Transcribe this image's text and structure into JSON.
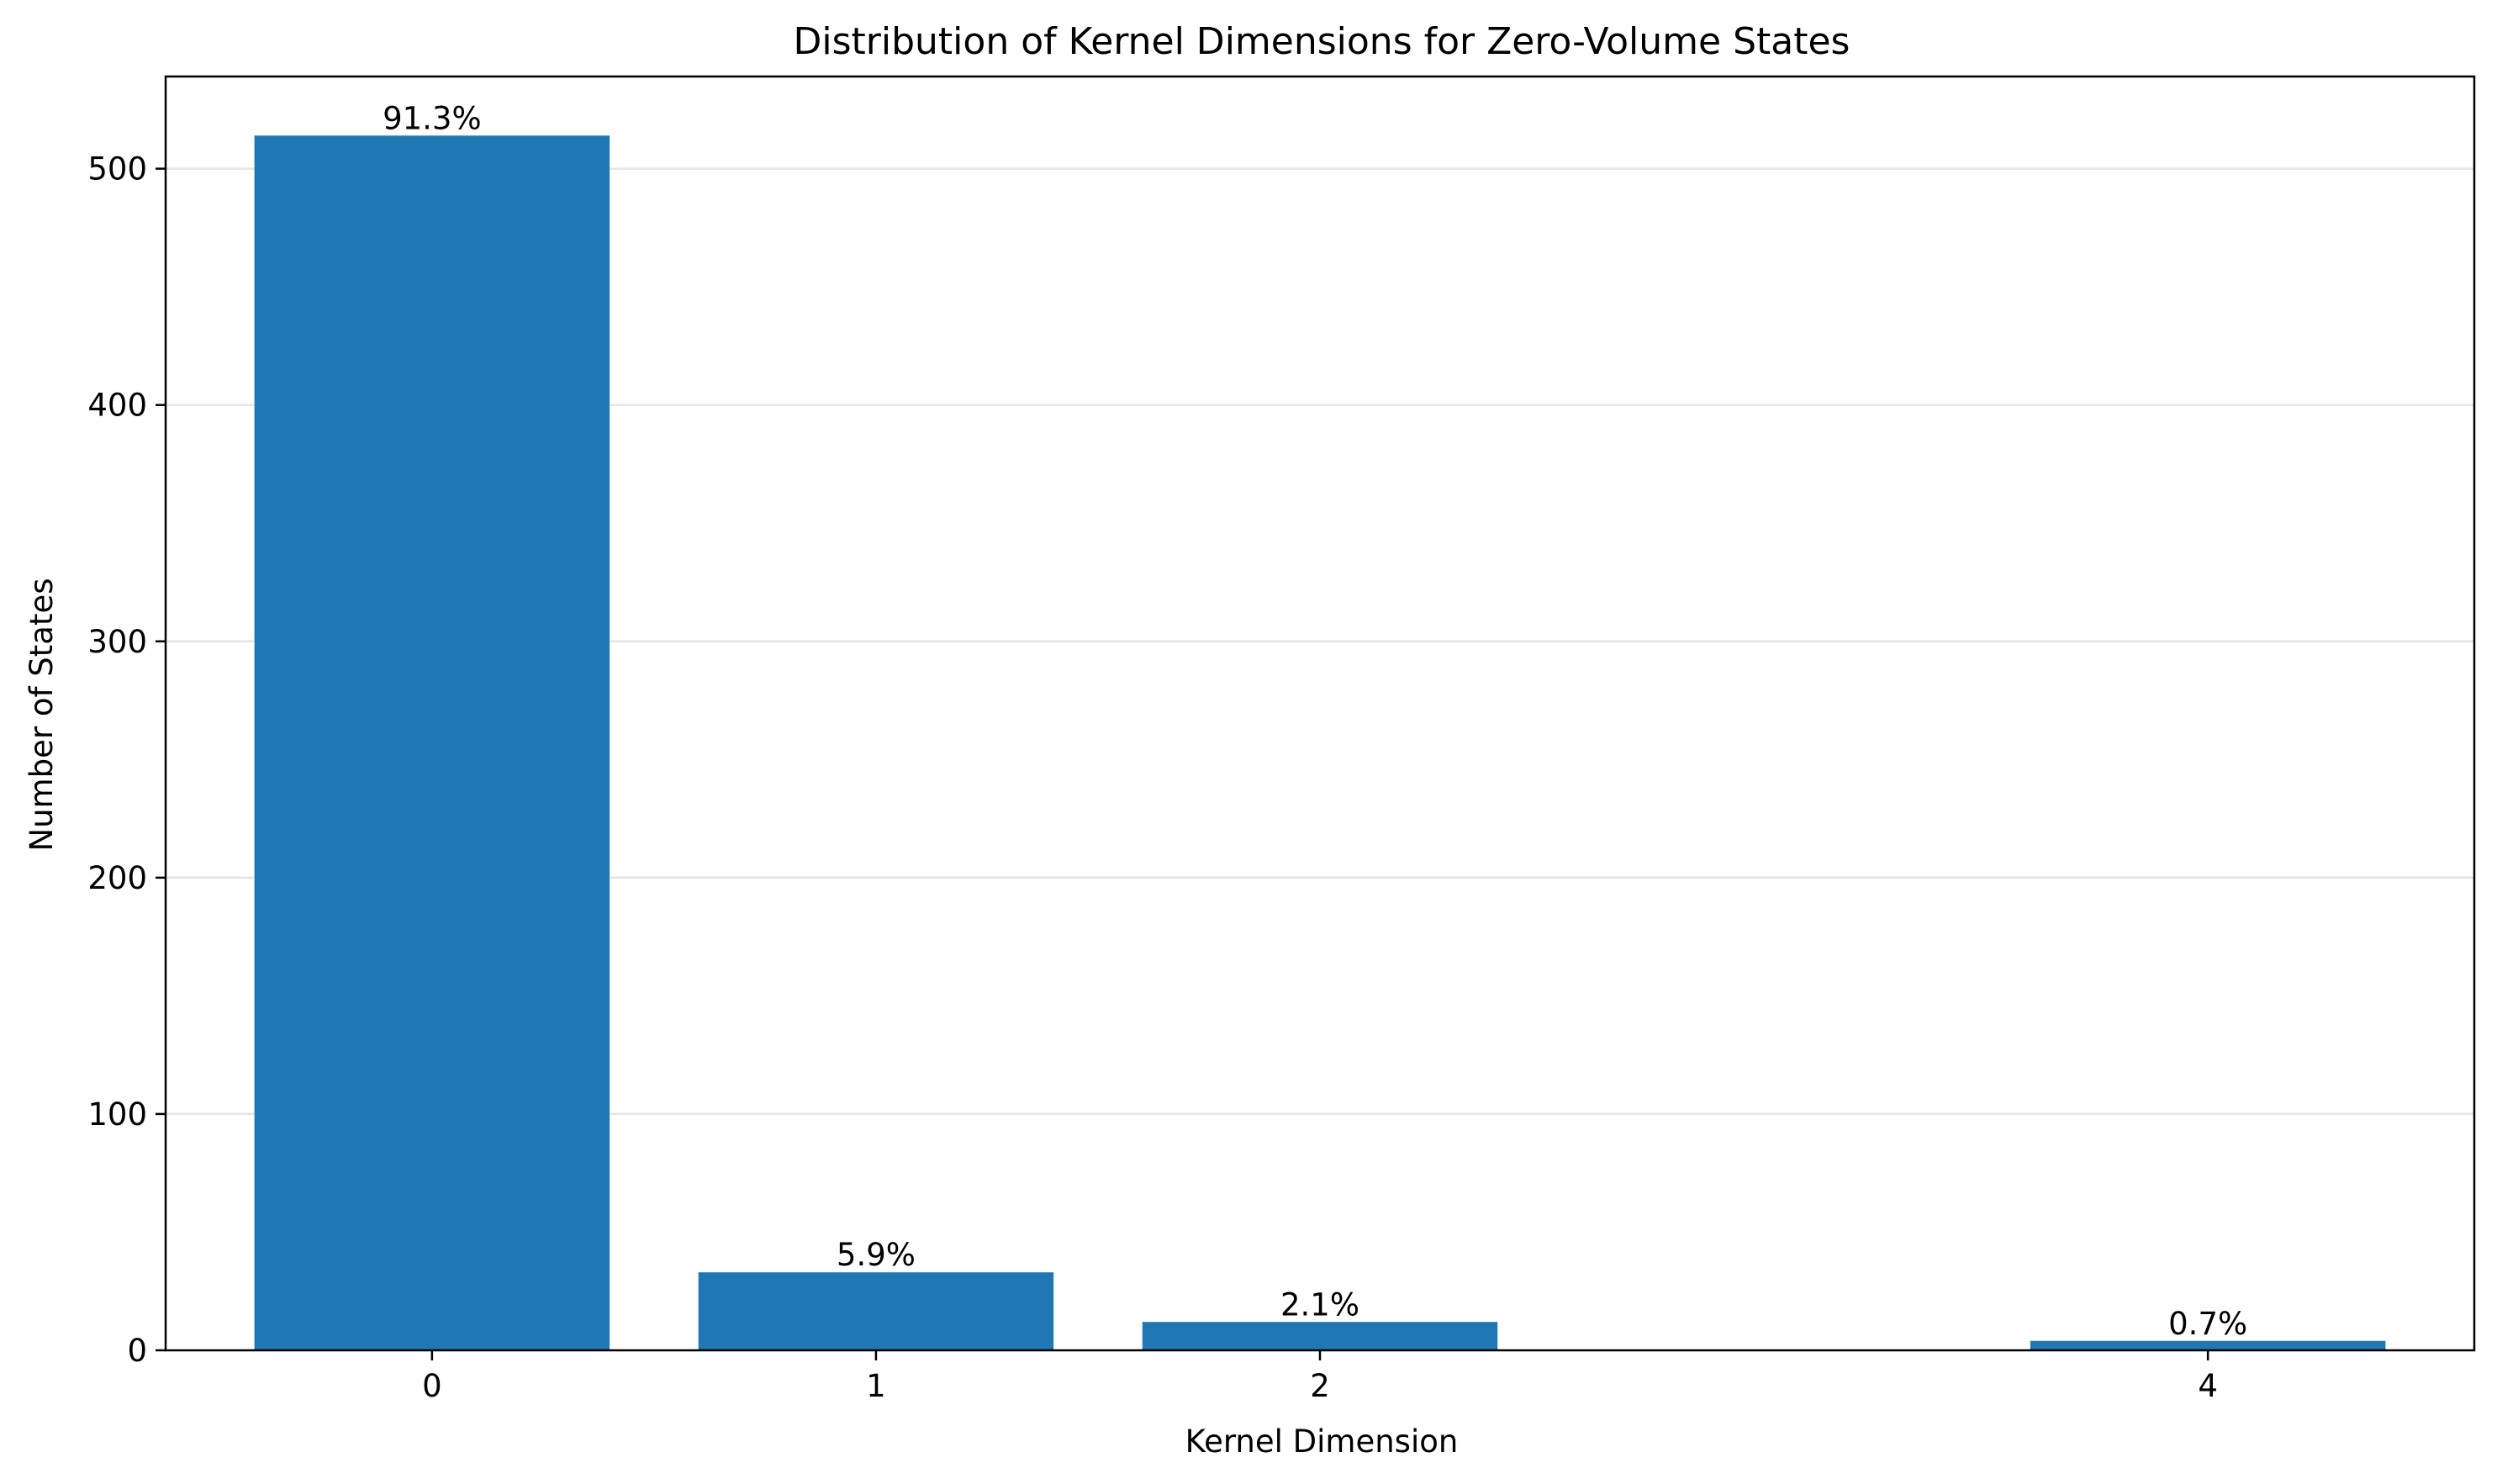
{
  "chart_data": {
    "type": "bar",
    "title": "Distribution of Kernel Dimensions for Zero-Volume States",
    "xlabel": "Kernel Dimension",
    "ylabel": "Number of States",
    "x": [
      0,
      1,
      2,
      4
    ],
    "values": [
      514,
      33,
      12,
      4
    ],
    "data_labels": [
      "91.3%",
      "5.9%",
      "2.1%",
      "0.7%"
    ],
    "x_ticks": [
      "0",
      "1",
      "2",
      "4"
    ],
    "y_ticks": [
      "0",
      "100",
      "200",
      "300",
      "400",
      "500"
    ],
    "y_tick_values": [
      0,
      100,
      200,
      300,
      400,
      500
    ],
    "xlim": [
      -0.6,
      4.6
    ],
    "ylim": [
      0,
      539
    ],
    "bar_width": 0.8,
    "grid": "y",
    "bar_color": "#1f77b4",
    "grid_color": "#e5e5e5"
  }
}
